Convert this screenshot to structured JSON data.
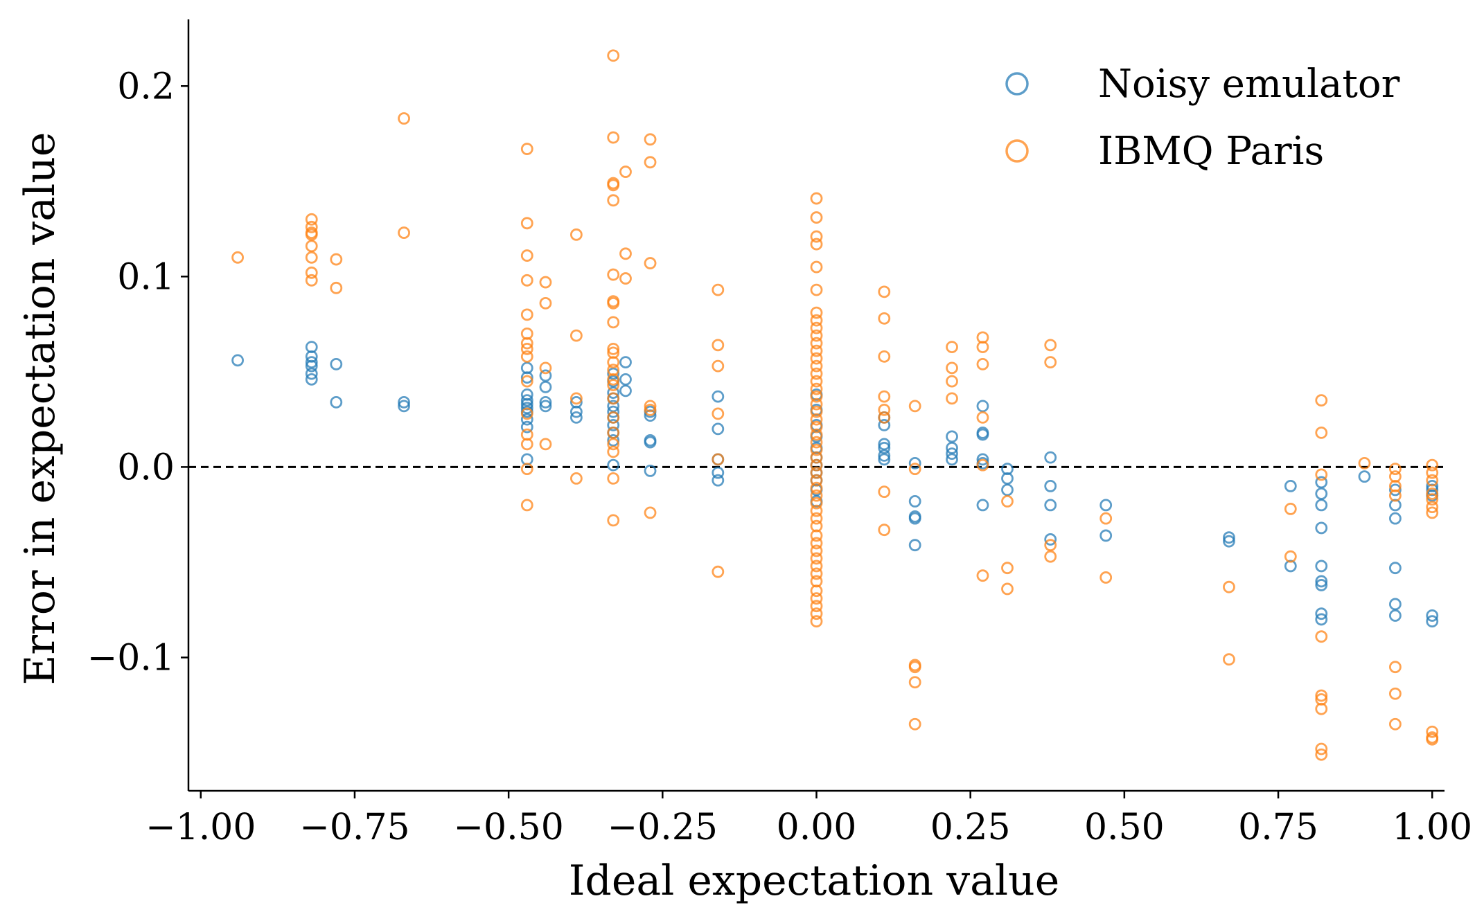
{
  "chart_data": {
    "type": "scatter",
    "xlabel": "Ideal expectation value",
    "ylabel": "Error in expectation value",
    "xlim": [
      -1.02,
      1.02
    ],
    "ylim": [
      -0.17,
      0.235
    ],
    "xticks": [
      -1.0,
      -0.75,
      -0.5,
      -0.25,
      0.0,
      0.25,
      0.5,
      0.75,
      1.0
    ],
    "xtick_labels": [
      "−1.00",
      "−0.75",
      "−0.50",
      "−0.25",
      "0.00",
      "0.25",
      "0.50",
      "0.75",
      "1.00"
    ],
    "yticks": [
      -0.1,
      0.0,
      0.1,
      0.2
    ],
    "ytick_labels": [
      "−0.1",
      "0.0",
      "0.1",
      "0.2"
    ],
    "reference_line": {
      "y": 0.0,
      "style": "dashed",
      "color": "#000000"
    },
    "grid": false,
    "legend_position": "top-right",
    "marker": "open-circle",
    "series": [
      {
        "name": "Noisy emulator",
        "color": "#1f77b4",
        "points": [
          [
            -0.94,
            0.056
          ],
          [
            -0.82,
            0.063
          ],
          [
            -0.82,
            0.058
          ],
          [
            -0.82,
            0.055
          ],
          [
            -0.82,
            0.053
          ],
          [
            -0.82,
            0.049
          ],
          [
            -0.82,
            0.046
          ],
          [
            -0.78,
            0.054
          ],
          [
            -0.78,
            0.034
          ],
          [
            -0.67,
            0.034
          ],
          [
            -0.67,
            0.032
          ],
          [
            -0.47,
            0.052
          ],
          [
            -0.47,
            0.047
          ],
          [
            -0.47,
            0.038
          ],
          [
            -0.47,
            0.035
          ],
          [
            -0.47,
            0.033
          ],
          [
            -0.47,
            0.031
          ],
          [
            -0.47,
            0.029
          ],
          [
            -0.47,
            0.025
          ],
          [
            -0.47,
            0.021
          ],
          [
            -0.47,
            0.004
          ],
          [
            -0.44,
            0.048
          ],
          [
            -0.44,
            0.042
          ],
          [
            -0.44,
            0.034
          ],
          [
            -0.44,
            0.032
          ],
          [
            -0.39,
            0.034
          ],
          [
            -0.39,
            0.029
          ],
          [
            -0.39,
            0.026
          ],
          [
            -0.33,
            0.049
          ],
          [
            -0.33,
            0.045
          ],
          [
            -0.33,
            0.039
          ],
          [
            -0.33,
            0.036
          ],
          [
            -0.33,
            0.032
          ],
          [
            -0.33,
            0.029
          ],
          [
            -0.33,
            0.026
          ],
          [
            -0.33,
            0.022
          ],
          [
            -0.33,
            0.018
          ],
          [
            -0.33,
            0.014
          ],
          [
            -0.33,
            0.001
          ],
          [
            -0.31,
            0.055
          ],
          [
            -0.31,
            0.046
          ],
          [
            -0.31,
            0.04
          ],
          [
            -0.27,
            0.029
          ],
          [
            -0.27,
            0.027
          ],
          [
            -0.27,
            0.014
          ],
          [
            -0.27,
            0.013
          ],
          [
            -0.27,
            -0.002
          ],
          [
            -0.16,
            0.037
          ],
          [
            -0.16,
            0.02
          ],
          [
            -0.16,
            0.004
          ],
          [
            -0.16,
            -0.003
          ],
          [
            -0.16,
            -0.007
          ],
          [
            0.0,
            0.038
          ],
          [
            0.0,
            0.03
          ],
          [
            0.0,
            0.022
          ],
          [
            0.0,
            0.016
          ],
          [
            0.0,
            0.01
          ],
          [
            0.0,
            0.005
          ],
          [
            0.0,
            0.001
          ],
          [
            0.0,
            -0.003
          ],
          [
            0.0,
            -0.007
          ],
          [
            0.0,
            -0.012
          ],
          [
            0.0,
            -0.018
          ],
          [
            0.11,
            0.026
          ],
          [
            0.11,
            0.022
          ],
          [
            0.11,
            0.012
          ],
          [
            0.11,
            0.01
          ],
          [
            0.11,
            0.006
          ],
          [
            0.11,
            0.004
          ],
          [
            0.16,
            0.002
          ],
          [
            0.16,
            -0.018
          ],
          [
            0.16,
            -0.026
          ],
          [
            0.16,
            -0.027
          ],
          [
            0.16,
            -0.041
          ],
          [
            0.22,
            0.016
          ],
          [
            0.22,
            0.01
          ],
          [
            0.22,
            0.007
          ],
          [
            0.22,
            0.004
          ],
          [
            0.27,
            0.032
          ],
          [
            0.27,
            0.018
          ],
          [
            0.27,
            0.017
          ],
          [
            0.27,
            0.004
          ],
          [
            0.27,
            0.002
          ],
          [
            0.27,
            -0.02
          ],
          [
            0.31,
            -0.001
          ],
          [
            0.31,
            -0.006
          ],
          [
            0.31,
            -0.012
          ],
          [
            0.38,
            0.005
          ],
          [
            0.38,
            -0.01
          ],
          [
            0.38,
            -0.02
          ],
          [
            0.38,
            -0.038
          ],
          [
            0.47,
            -0.02
          ],
          [
            0.47,
            -0.036
          ],
          [
            0.67,
            -0.037
          ],
          [
            0.67,
            -0.039
          ],
          [
            0.77,
            -0.01
          ],
          [
            0.77,
            -0.052
          ],
          [
            0.82,
            -0.008
          ],
          [
            0.82,
            -0.014
          ],
          [
            0.82,
            -0.02
          ],
          [
            0.82,
            -0.032
          ],
          [
            0.82,
            -0.052
          ],
          [
            0.82,
            -0.06
          ],
          [
            0.82,
            -0.062
          ],
          [
            0.82,
            -0.077
          ],
          [
            0.82,
            -0.08
          ],
          [
            0.89,
            -0.005
          ],
          [
            0.94,
            -0.012
          ],
          [
            0.94,
            -0.02
          ],
          [
            0.94,
            -0.027
          ],
          [
            0.94,
            -0.053
          ],
          [
            0.94,
            -0.072
          ],
          [
            0.94,
            -0.078
          ],
          [
            1.0,
            -0.01
          ],
          [
            1.0,
            -0.012
          ],
          [
            1.0,
            -0.015
          ],
          [
            1.0,
            -0.078
          ],
          [
            1.0,
            -0.081
          ]
        ]
      },
      {
        "name": "IBMQ Paris",
        "color": "#ff7f0e",
        "points": [
          [
            -0.94,
            0.11
          ],
          [
            -0.82,
            0.13
          ],
          [
            -0.82,
            0.126
          ],
          [
            -0.82,
            0.123
          ],
          [
            -0.82,
            0.122
          ],
          [
            -0.82,
            0.116
          ],
          [
            -0.82,
            0.11
          ],
          [
            -0.82,
            0.102
          ],
          [
            -0.82,
            0.098
          ],
          [
            -0.78,
            0.109
          ],
          [
            -0.78,
            0.094
          ],
          [
            -0.67,
            0.183
          ],
          [
            -0.67,
            0.123
          ],
          [
            -0.47,
            0.167
          ],
          [
            -0.47,
            0.128
          ],
          [
            -0.47,
            0.111
          ],
          [
            -0.47,
            0.098
          ],
          [
            -0.47,
            0.08
          ],
          [
            -0.47,
            0.07
          ],
          [
            -0.47,
            0.065
          ],
          [
            -0.47,
            0.062
          ],
          [
            -0.47,
            0.058
          ],
          [
            -0.47,
            0.045
          ],
          [
            -0.47,
            0.028
          ],
          [
            -0.47,
            0.017
          ],
          [
            -0.47,
            0.012
          ],
          [
            -0.47,
            -0.001
          ],
          [
            -0.47,
            -0.02
          ],
          [
            -0.44,
            0.097
          ],
          [
            -0.44,
            0.086
          ],
          [
            -0.44,
            0.052
          ],
          [
            -0.44,
            0.012
          ],
          [
            -0.39,
            0.122
          ],
          [
            -0.39,
            0.069
          ],
          [
            -0.39,
            0.036
          ],
          [
            -0.39,
            -0.006
          ],
          [
            -0.33,
            0.216
          ],
          [
            -0.33,
            0.173
          ],
          [
            -0.33,
            0.149
          ],
          [
            -0.33,
            0.148
          ],
          [
            -0.33,
            0.14
          ],
          [
            -0.33,
            0.101
          ],
          [
            -0.33,
            0.087
          ],
          [
            -0.33,
            0.086
          ],
          [
            -0.33,
            0.076
          ],
          [
            -0.33,
            0.062
          ],
          [
            -0.33,
            0.06
          ],
          [
            -0.33,
            0.055
          ],
          [
            -0.33,
            0.051
          ],
          [
            -0.33,
            0.046
          ],
          [
            -0.33,
            0.043
          ],
          [
            -0.33,
            0.036
          ],
          [
            -0.33,
            0.026
          ],
          [
            -0.33,
            0.018
          ],
          [
            -0.33,
            0.012
          ],
          [
            -0.33,
            0.008
          ],
          [
            -0.33,
            -0.006
          ],
          [
            -0.33,
            -0.028
          ],
          [
            -0.31,
            0.155
          ],
          [
            -0.31,
            0.112
          ],
          [
            -0.31,
            0.099
          ],
          [
            -0.27,
            0.172
          ],
          [
            -0.27,
            0.16
          ],
          [
            -0.27,
            0.107
          ],
          [
            -0.27,
            0.032
          ],
          [
            -0.27,
            0.03
          ],
          [
            -0.27,
            -0.024
          ],
          [
            -0.16,
            0.093
          ],
          [
            -0.16,
            0.064
          ],
          [
            -0.16,
            0.053
          ],
          [
            -0.16,
            0.028
          ],
          [
            -0.16,
            0.004
          ],
          [
            -0.16,
            -0.055
          ],
          [
            0.0,
            0.141
          ],
          [
            0.0,
            0.131
          ],
          [
            0.0,
            0.121
          ],
          [
            0.0,
            0.117
          ],
          [
            0.0,
            0.105
          ],
          [
            0.0,
            0.093
          ],
          [
            0.0,
            0.081
          ],
          [
            0.0,
            0.077
          ],
          [
            0.0,
            0.073
          ],
          [
            0.0,
            0.069
          ],
          [
            0.0,
            0.065
          ],
          [
            0.0,
            0.061
          ],
          [
            0.0,
            0.057
          ],
          [
            0.0,
            0.053
          ],
          [
            0.0,
            0.049
          ],
          [
            0.0,
            0.045
          ],
          [
            0.0,
            0.041
          ],
          [
            0.0,
            0.037
          ],
          [
            0.0,
            0.033
          ],
          [
            0.0,
            0.029
          ],
          [
            0.0,
            0.025
          ],
          [
            0.0,
            0.021
          ],
          [
            0.0,
            0.017
          ],
          [
            0.0,
            0.013
          ],
          [
            0.0,
            0.009
          ],
          [
            0.0,
            0.005
          ],
          [
            0.0,
            0.001
          ],
          [
            0.0,
            -0.003
          ],
          [
            0.0,
            -0.007
          ],
          [
            0.0,
            -0.011
          ],
          [
            0.0,
            -0.015
          ],
          [
            0.0,
            -0.019
          ],
          [
            0.0,
            -0.023
          ],
          [
            0.0,
            -0.027
          ],
          [
            0.0,
            -0.031
          ],
          [
            0.0,
            -0.036
          ],
          [
            0.0,
            -0.04
          ],
          [
            0.0,
            -0.044
          ],
          [
            0.0,
            -0.048
          ],
          [
            0.0,
            -0.052
          ],
          [
            0.0,
            -0.056
          ],
          [
            0.0,
            -0.06
          ],
          [
            0.0,
            -0.065
          ],
          [
            0.0,
            -0.069
          ],
          [
            0.0,
            -0.073
          ],
          [
            0.0,
            -0.077
          ],
          [
            0.0,
            -0.081
          ],
          [
            0.11,
            0.092
          ],
          [
            0.11,
            0.078
          ],
          [
            0.11,
            0.058
          ],
          [
            0.11,
            0.037
          ],
          [
            0.11,
            0.03
          ],
          [
            0.11,
            0.026
          ],
          [
            0.11,
            -0.013
          ],
          [
            0.11,
            -0.033
          ],
          [
            0.16,
            0.032
          ],
          [
            0.16,
            -0.001
          ],
          [
            0.16,
            -0.104
          ],
          [
            0.16,
            -0.105
          ],
          [
            0.16,
            -0.113
          ],
          [
            0.16,
            -0.135
          ],
          [
            0.22,
            0.063
          ],
          [
            0.22,
            0.052
          ],
          [
            0.22,
            0.045
          ],
          [
            0.22,
            0.036
          ],
          [
            0.27,
            0.068
          ],
          [
            0.27,
            0.063
          ],
          [
            0.27,
            0.054
          ],
          [
            0.27,
            0.026
          ],
          [
            0.27,
            0.001
          ],
          [
            0.27,
            -0.057
          ],
          [
            0.31,
            -0.018
          ],
          [
            0.31,
            -0.053
          ],
          [
            0.31,
            -0.064
          ],
          [
            0.38,
            0.064
          ],
          [
            0.38,
            0.055
          ],
          [
            0.38,
            -0.041
          ],
          [
            0.38,
            -0.047
          ],
          [
            0.47,
            -0.027
          ],
          [
            0.47,
            -0.058
          ],
          [
            0.67,
            -0.063
          ],
          [
            0.67,
            -0.101
          ],
          [
            0.77,
            -0.022
          ],
          [
            0.77,
            -0.047
          ],
          [
            0.82,
            0.035
          ],
          [
            0.82,
            0.018
          ],
          [
            0.82,
            -0.004
          ],
          [
            0.82,
            -0.089
          ],
          [
            0.82,
            -0.12
          ],
          [
            0.82,
            -0.122
          ],
          [
            0.82,
            -0.127
          ],
          [
            0.82,
            -0.148
          ],
          [
            0.82,
            -0.151
          ],
          [
            0.89,
            0.002
          ],
          [
            0.94,
            -0.001
          ],
          [
            0.94,
            -0.005
          ],
          [
            0.94,
            -0.01
          ],
          [
            0.94,
            -0.015
          ],
          [
            0.94,
            -0.105
          ],
          [
            0.94,
            -0.119
          ],
          [
            0.94,
            -0.135
          ],
          [
            1.0,
            0.001
          ],
          [
            1.0,
            -0.003
          ],
          [
            1.0,
            -0.007
          ],
          [
            1.0,
            -0.014
          ],
          [
            1.0,
            -0.017
          ],
          [
            1.0,
            -0.021
          ],
          [
            1.0,
            -0.024
          ],
          [
            1.0,
            -0.139
          ],
          [
            1.0,
            -0.142
          ],
          [
            1.0,
            -0.143
          ]
        ]
      }
    ]
  }
}
